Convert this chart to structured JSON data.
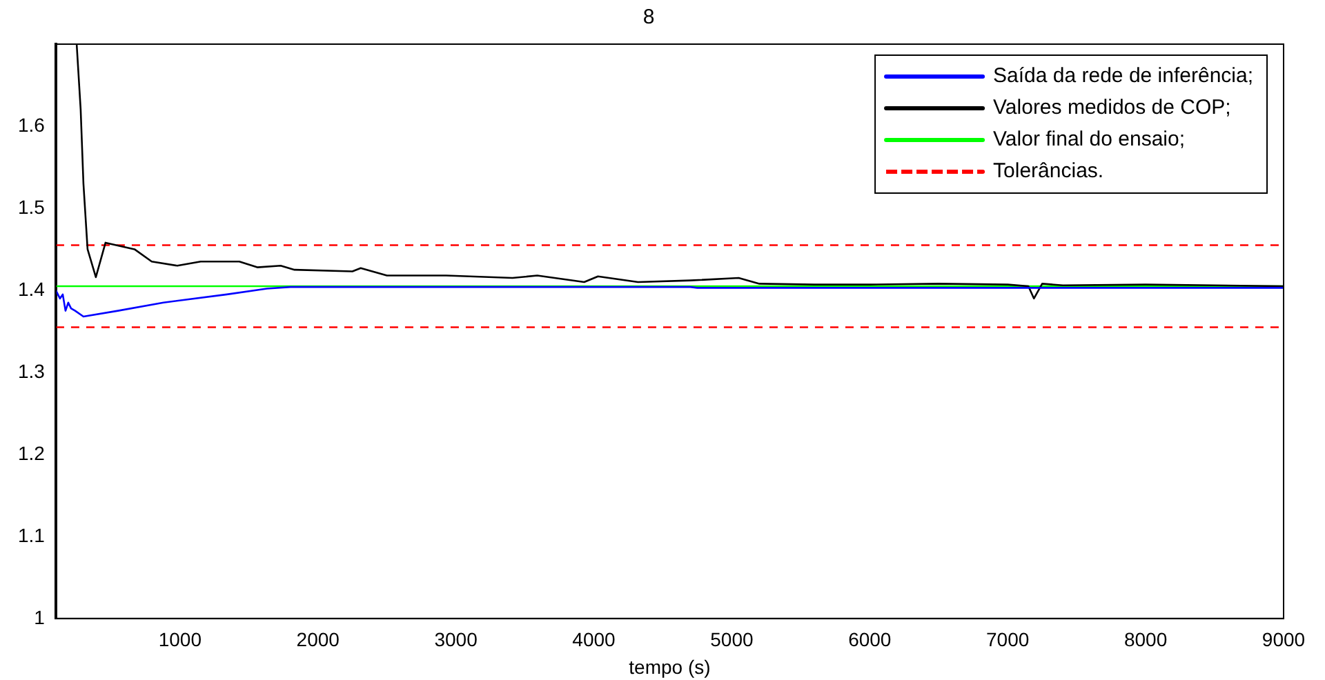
{
  "chart_data": {
    "type": "line",
    "title": "8",
    "xlabel": "tempo (s)",
    "xlim": [
      100,
      9000
    ],
    "ylim": [
      1,
      1.7
    ],
    "xticks": [
      1000,
      2000,
      3000,
      4000,
      5000,
      6000,
      7000,
      8000,
      9000
    ],
    "yticks": [
      1,
      1.1,
      1.2,
      1.3,
      1.4,
      1.5,
      1.6
    ],
    "grid": false,
    "legend": "top right",
    "marker": "none",
    "series": [
      {
        "name": "Saída da rede de inferência;",
        "color": "#0000ff",
        "x": [
          100,
          130,
          150,
          170,
          190,
          210,
          240,
          300,
          550,
          880,
          1340,
          1630,
          1800,
          3000,
          4700,
          4750,
          6000,
          7000,
          8000,
          9000
        ],
        "values": [
          1.4,
          1.39,
          1.395,
          1.375,
          1.385,
          1.378,
          1.375,
          1.368,
          1.375,
          1.385,
          1.395,
          1.402,
          1.404,
          1.404,
          1.404,
          1.403,
          1.403,
          1.403,
          1.403,
          1.403
        ]
      },
      {
        "name": "Valores medidos de COP;",
        "color": "#000000",
        "x": [
          251,
          280,
          300,
          330,
          390,
          460,
          670,
          795,
          980,
          1150,
          1430,
          1560,
          1730,
          1830,
          2250,
          2310,
          2500,
          2930,
          3410,
          3590,
          3930,
          4030,
          4320,
          4700,
          5050,
          5200,
          5600,
          6000,
          6500,
          7000,
          7150,
          7190,
          7250,
          7400,
          8000,
          8500,
          9000
        ],
        "values": [
          1.7,
          1.62,
          1.53,
          1.45,
          1.416,
          1.458,
          1.45,
          1.435,
          1.43,
          1.435,
          1.435,
          1.428,
          1.43,
          1.425,
          1.423,
          1.427,
          1.418,
          1.418,
          1.415,
          1.418,
          1.41,
          1.417,
          1.41,
          1.412,
          1.415,
          1.408,
          1.407,
          1.407,
          1.408,
          1.407,
          1.405,
          1.39,
          1.408,
          1.406,
          1.407,
          1.406,
          1.405
        ]
      },
      {
        "name": "Valor final do ensaio;",
        "color": "#00ff00",
        "x": [
          100,
          9000
        ],
        "values": [
          1.405,
          1.405
        ]
      },
      {
        "name": "Tolerâncias.",
        "color": "#ff0000",
        "line_style": "dashed",
        "x": [
          100,
          9000
        ],
        "values": [
          1.455,
          1.455
        ]
      },
      {
        "color": "#ff0000",
        "line_style": "dashed",
        "x": [
          100,
          9000
        ],
        "values": [
          1.355,
          1.355
        ]
      }
    ]
  }
}
